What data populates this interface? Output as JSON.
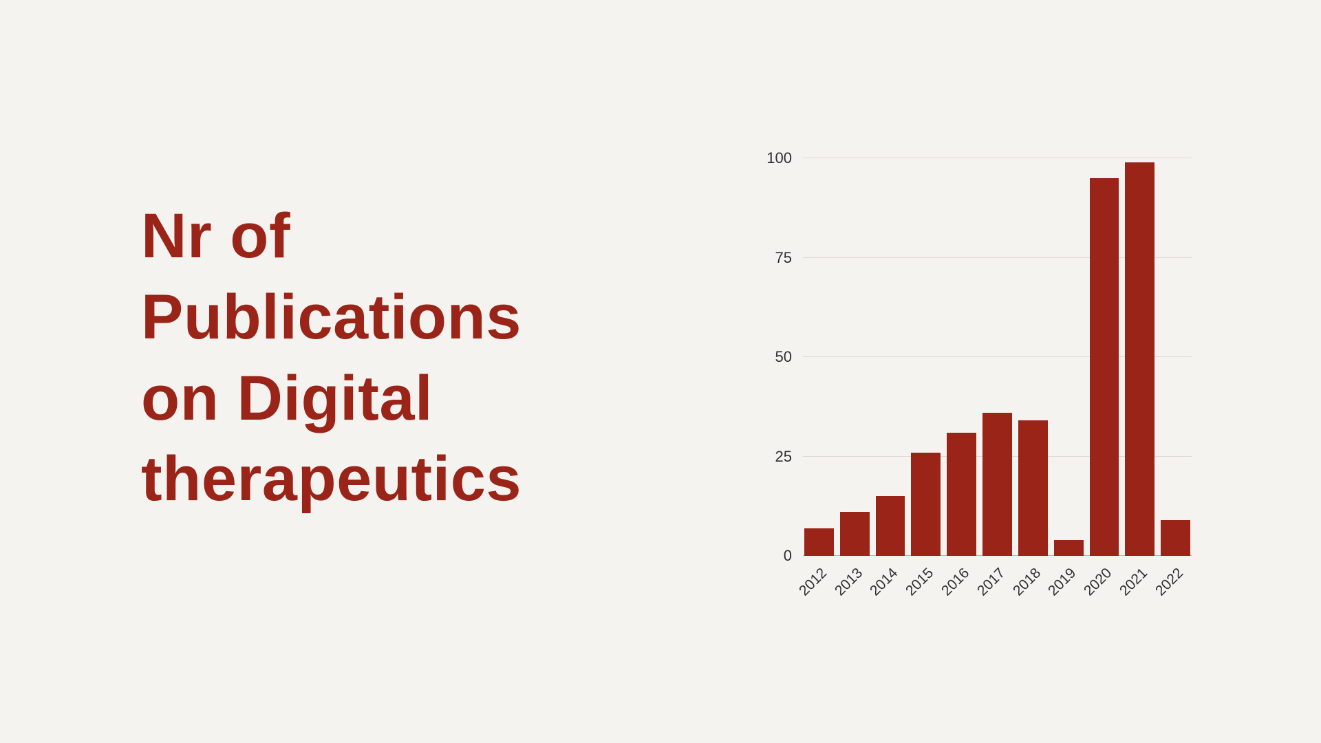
{
  "page": {
    "background": "#f5f3f0"
  },
  "title": {
    "lines": [
      "Nr of",
      "Publications",
      "on Digital",
      "therapeutics"
    ],
    "color": "#9a2418"
  },
  "chart_data": {
    "type": "bar",
    "title": "Nr of Publications on Digital therapeutics",
    "categories": [
      "2012",
      "2013",
      "2014",
      "2015",
      "2016",
      "2017",
      "2018",
      "2019",
      "2020",
      "2021",
      "2022"
    ],
    "values": [
      7,
      11,
      15,
      26,
      31,
      36,
      34,
      4,
      95,
      99,
      9
    ],
    "xlabel": "",
    "ylabel": "",
    "ylim": [
      0,
      100
    ],
    "yticks": [
      0,
      25,
      50,
      75,
      100
    ],
    "grid": true,
    "legend": false,
    "bar_color": "#9a2418",
    "gridline_color": "#dddad6",
    "axis_label_color": "#2f2f2f"
  }
}
